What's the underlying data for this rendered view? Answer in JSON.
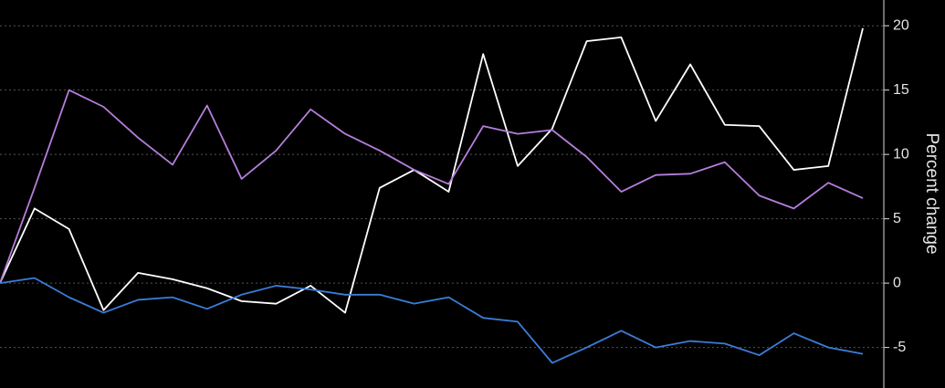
{
  "chart_data": {
    "type": "line",
    "y_label": "Percent change",
    "categories": [
      null,
      null,
      null,
      null,
      null,
      null,
      null,
      null,
      null,
      null,
      null,
      null,
      null,
      null,
      null,
      null,
      null,
      null,
      null,
      null,
      null,
      null,
      null,
      null,
      null,
      null
    ],
    "series": [
      {
        "color": "#ffffff",
        "values": [
          0,
          5.8,
          4.2,
          -2.1,
          0.8,
          0.3,
          -0.4,
          -1.4,
          -1.6,
          -0.2,
          -2.3,
          7.4,
          8.8,
          7.1,
          17.8,
          9.1,
          12.0,
          18.8,
          19.1,
          12.6,
          17.0,
          12.3,
          12.2,
          8.8,
          9.1,
          19.8
        ]
      },
      {
        "color": "#b57edc",
        "values": [
          0,
          7.4,
          15.0,
          13.7,
          11.3,
          9.2,
          13.8,
          8.1,
          10.3,
          13.5,
          11.6,
          10.3,
          8.8,
          7.7,
          12.2,
          11.6,
          11.9,
          9.8,
          7.1,
          8.4,
          8.5,
          9.4,
          6.8,
          5.8,
          7.8,
          6.6
        ]
      },
      {
        "color": "#3b7dd8",
        "values": [
          0,
          0.4,
          -1.1,
          -2.3,
          -1.3,
          -1.1,
          -2.0,
          -0.9,
          -0.2,
          -0.5,
          -0.9,
          -0.9,
          -1.6,
          -1.1,
          -2.7,
          -3.0,
          -6.2,
          -5.0,
          -3.7,
          -5.0,
          -4.5,
          -4.7,
          -5.6,
          -3.9,
          -5.0,
          -5.5
        ]
      }
    ],
    "ylim": [
      -8.15,
      22
    ],
    "yticks": [
      -5,
      0,
      5,
      10,
      15,
      20
    ],
    "grid": true,
    "y_axis_side": "right"
  }
}
